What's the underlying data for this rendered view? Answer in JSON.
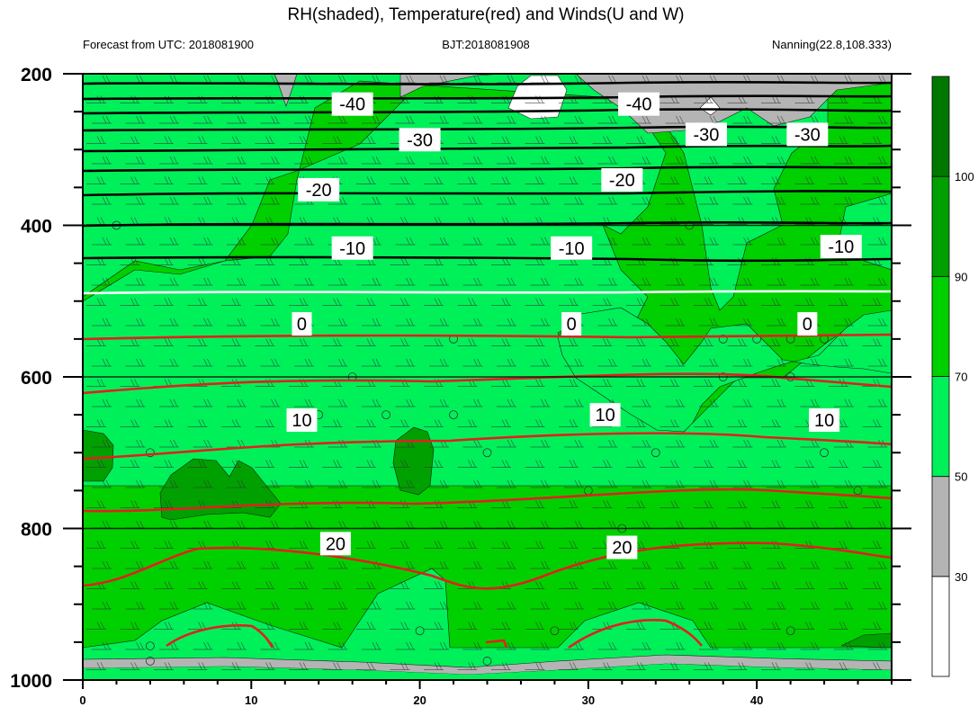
{
  "chart_data": {
    "type": "contour",
    "title": "RH(shaded), Temperature(red) and Winds(U and W)",
    "subtitle_left": "Forecast from UTC: 2018081900",
    "subtitle_center": "BJT:2018081908",
    "subtitle_right": "Nanning(22.8,108.333)",
    "x": {
      "range": [
        0,
        48
      ],
      "ticks": [
        0,
        10,
        20,
        30,
        40
      ],
      "tick_labels": [
        "0",
        "10",
        "20",
        "30",
        "40"
      ]
    },
    "y": {
      "range": [
        1000,
        200
      ],
      "ticks": [
        200,
        400,
        600,
        800,
        1000
      ],
      "tick_labels": [
        "200",
        "400",
        "600",
        "800",
        "1000"
      ],
      "inverted": true
    },
    "colorbar": {
      "levels": [
        30,
        50,
        70,
        90,
        100
      ],
      "level_labels": [
        "30",
        "50",
        "70",
        "90",
        "100"
      ],
      "colors": [
        "#ffffff",
        "#b4b4b4",
        "#00f05a",
        "#00d000",
        "#00a000",
        "#007800"
      ]
    },
    "temperature_labels": [
      {
        "text": "-40",
        "x": 16,
        "p": 240
      },
      {
        "text": "-40",
        "x": 33,
        "p": 240
      },
      {
        "text": "-30",
        "x": 20,
        "p": 287
      },
      {
        "text": "-30",
        "x": 37,
        "p": 280
      },
      {
        "text": "-30",
        "x": 43,
        "p": 280
      },
      {
        "text": "-20",
        "x": 14,
        "p": 353
      },
      {
        "text": "-20",
        "x": 32,
        "p": 340
      },
      {
        "text": "-10",
        "x": 16,
        "p": 430
      },
      {
        "text": "-10",
        "x": 29,
        "p": 430
      },
      {
        "text": "-10",
        "x": 45,
        "p": 428
      },
      {
        "text": "0",
        "x": 13,
        "p": 530
      },
      {
        "text": "0",
        "x": 29,
        "p": 530
      },
      {
        "text": "0",
        "x": 43,
        "p": 530
      },
      {
        "text": "10",
        "x": 13,
        "p": 657
      },
      {
        "text": "10",
        "x": 31,
        "p": 650
      },
      {
        "text": "10",
        "x": 44,
        "p": 657
      },
      {
        "text": "20",
        "x": 15,
        "p": 820
      },
      {
        "text": "20",
        "x": 32,
        "p": 825
      }
    ]
  }
}
